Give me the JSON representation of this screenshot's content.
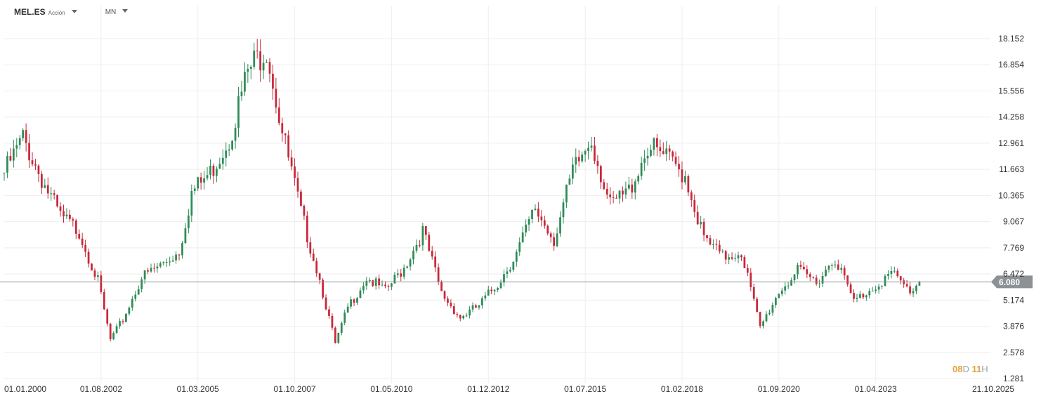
{
  "header": {
    "symbol": "MEL.ES",
    "instrument_type": "Acción",
    "interval": "MN"
  },
  "countdown": {
    "days": "08",
    "day_unit": "D",
    "hours": "11",
    "hour_unit": "H"
  },
  "colors": {
    "up": "#2e8b57",
    "down": "#c8283a",
    "grid": "#eeeeee",
    "price_line": "#8c9196",
    "price_tag_bg": "#8c9196",
    "axis_text": "#333333"
  },
  "chart_data": {
    "type": "candlestick",
    "ylim": [
      1.281,
      18.152
    ],
    "y_ticks": [
      "18.152",
      "16.854",
      "15.556",
      "14.258",
      "12.961",
      "11.663",
      "10.365",
      "9.067",
      "7.769",
      "6.472",
      "5.174",
      "3.876",
      "2.578",
      "1.281"
    ],
    "x_ticks": [
      "01.01.2000",
      "01.08.2002",
      "01.03.2005",
      "01.10.2007",
      "01.05.2010",
      "01.12.2012",
      "01.07.2015",
      "01.02.2018",
      "01.09.2020",
      "01.04.2023",
      "21.10.2025"
    ],
    "last_price": 6.08,
    "last_price_label": "6.080",
    "series": [
      {
        "date": "2000-01",
        "close": 11.5
      },
      {
        "date": "2000-07",
        "close": 13.2
      },
      {
        "date": "2001-01",
        "close": 11.2
      },
      {
        "date": "2001-07",
        "close": 9.3
      },
      {
        "date": "2002-01",
        "close": 8.6
      },
      {
        "date": "2002-07",
        "close": 6.1
      },
      {
        "date": "2002-11",
        "close": 3.2
      },
      {
        "date": "2003-03",
        "close": 4.2
      },
      {
        "date": "2003-09",
        "close": 6.3
      },
      {
        "date": "2004-03",
        "close": 6.9
      },
      {
        "date": "2004-09",
        "close": 7.6
      },
      {
        "date": "2005-01",
        "close": 10.5
      },
      {
        "date": "2005-07",
        "close": 11.5
      },
      {
        "date": "2006-01",
        "close": 13.2
      },
      {
        "date": "2006-07",
        "close": 16.5
      },
      {
        "date": "2007-01",
        "close": 17.8
      },
      {
        "date": "2007-06",
        "close": 13.5
      },
      {
        "date": "2007-12",
        "close": 9.5
      },
      {
        "date": "2008-06",
        "close": 6.2
      },
      {
        "date": "2008-11",
        "close": 3.0
      },
      {
        "date": "2009-03",
        "close": 4.8
      },
      {
        "date": "2009-09",
        "close": 6.3
      },
      {
        "date": "2010-03",
        "close": 5.6
      },
      {
        "date": "2010-09",
        "close": 6.8
      },
      {
        "date": "2011-03",
        "close": 8.6
      },
      {
        "date": "2011-09",
        "close": 5.5
      },
      {
        "date": "2012-03",
        "close": 4.3
      },
      {
        "date": "2012-09",
        "close": 4.9
      },
      {
        "date": "2013-03",
        "close": 6.0
      },
      {
        "date": "2013-09",
        "close": 7.5
      },
      {
        "date": "2014-03",
        "close": 9.7
      },
      {
        "date": "2014-09",
        "close": 8.2
      },
      {
        "date": "2015-03",
        "close": 11.5
      },
      {
        "date": "2015-09",
        "close": 13.2
      },
      {
        "date": "2016-03",
        "close": 9.8
      },
      {
        "date": "2016-09",
        "close": 10.6
      },
      {
        "date": "2017-03",
        "close": 12.8
      },
      {
        "date": "2017-09",
        "close": 12.2
      },
      {
        "date": "2018-03",
        "close": 11.4
      },
      {
        "date": "2018-09",
        "close": 8.2
      },
      {
        "date": "2019-03",
        "close": 7.3
      },
      {
        "date": "2019-09",
        "close": 7.6
      },
      {
        "date": "2020-03",
        "close": 3.8
      },
      {
        "date": "2020-09",
        "close": 5.6
      },
      {
        "date": "2021-03",
        "close": 6.6
      },
      {
        "date": "2021-09",
        "close": 6.1
      },
      {
        "date": "2022-03",
        "close": 7.3
      },
      {
        "date": "2022-09",
        "close": 5.1
      },
      {
        "date": "2023-03",
        "close": 5.8
      },
      {
        "date": "2023-09",
        "close": 6.5
      },
      {
        "date": "2024-03",
        "close": 5.6
      },
      {
        "date": "2024-06",
        "close": 6.08
      }
    ]
  }
}
